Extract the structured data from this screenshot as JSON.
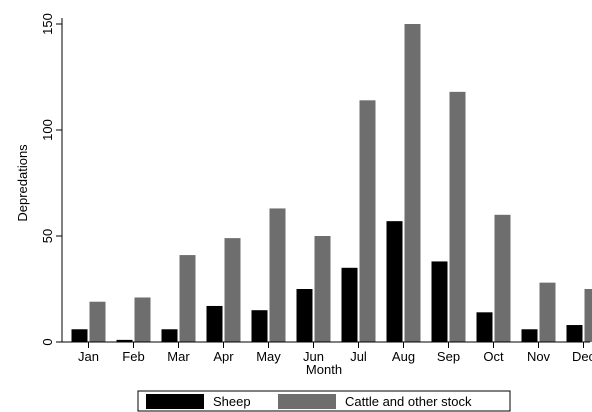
{
  "chart_data": {
    "type": "bar",
    "title": "",
    "xlabel": "Month",
    "ylabel": "Depredations",
    "categories": [
      "Jan",
      "Feb",
      "Mar",
      "Apr",
      "May",
      "Jun",
      "Jul",
      "Aug",
      "Sep",
      "Oct",
      "Nov",
      "Dec"
    ],
    "ylim": [
      0,
      150
    ],
    "yticks": [
      0,
      50,
      100,
      150
    ],
    "grid": false,
    "legend_position": "bottom",
    "series": [
      {
        "name": "Sheep",
        "color": "#000000",
        "values": [
          6,
          1,
          6,
          17,
          15,
          25,
          35,
          57,
          38,
          14,
          6,
          8
        ]
      },
      {
        "name": "Cattle and other stock",
        "color": "#6e6e6e",
        "values": [
          19,
          21,
          41,
          49,
          63,
          50,
          114,
          150,
          118,
          60,
          28,
          25
        ]
      }
    ]
  }
}
